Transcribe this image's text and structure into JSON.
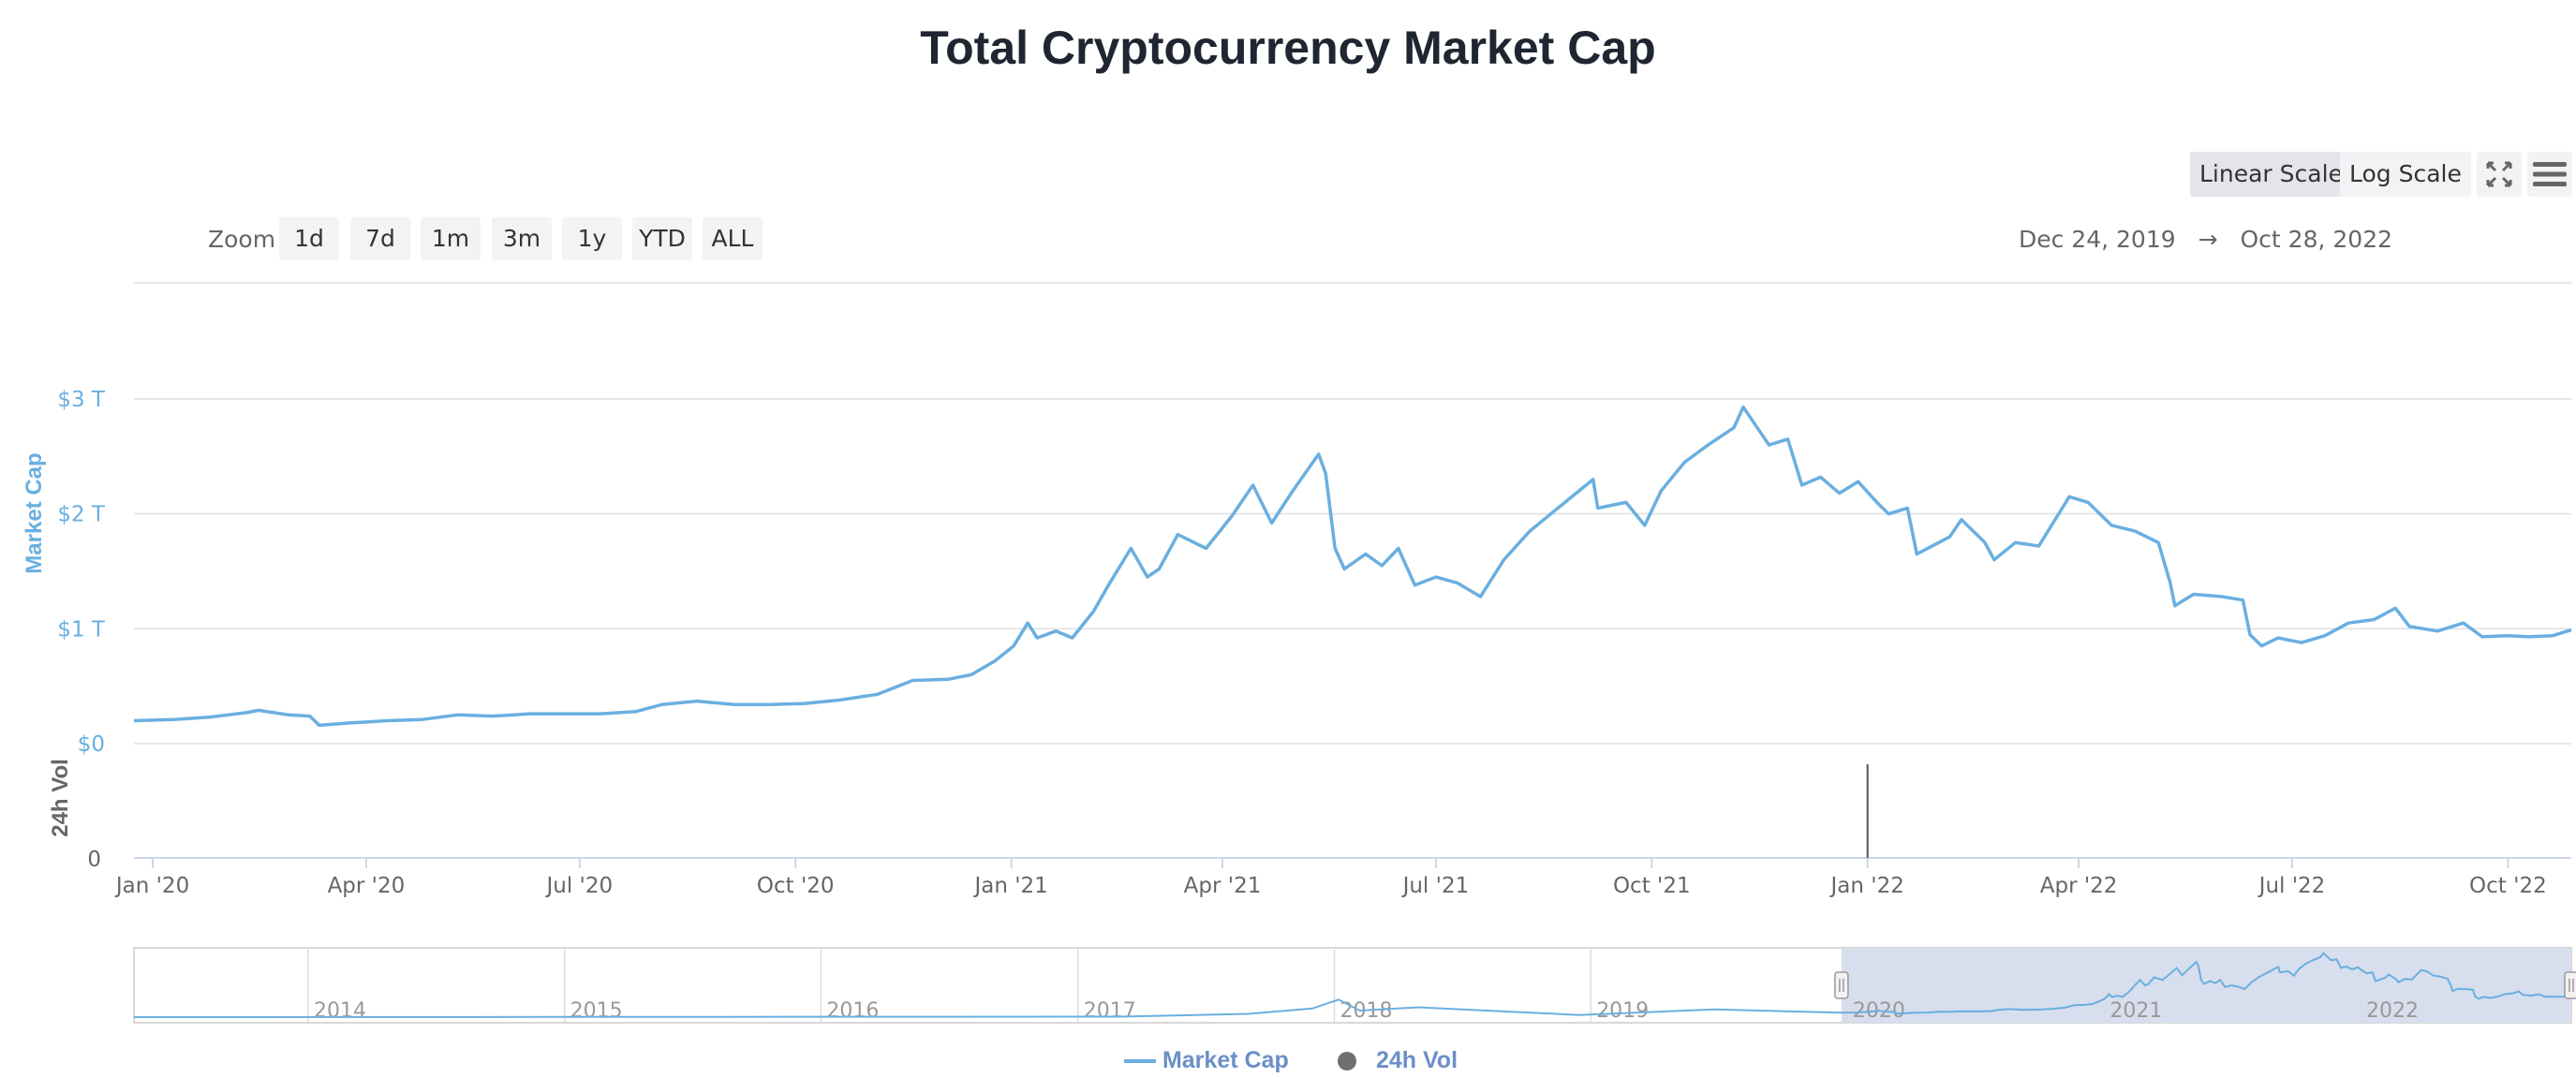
{
  "chart_data": {
    "type": "line",
    "title": "Total Cryptocurrency Market Cap",
    "date_range": {
      "from": "Dec 24, 2019",
      "arrow": "→",
      "to": "Oct 28, 2022"
    },
    "y_axis_market_cap": {
      "label": "Market Cap",
      "unit": "$ trillion",
      "range": [
        0,
        3
      ],
      "ticks": [
        "$0",
        "$1 T",
        "$2 T",
        "$3 T"
      ],
      "tick_values": [
        0,
        1,
        2,
        3
      ]
    },
    "y_axis_volume": {
      "label": "24h Vol",
      "ticks": [
        "0"
      ]
    },
    "x_tick_labels": [
      "Jan '20",
      "Apr '20",
      "Jul '20",
      "Oct '20",
      "Jan '21",
      "Apr '21",
      "Jul '21",
      "Oct '21",
      "Jan '22",
      "Apr '22",
      "Jul '22",
      "Oct '22"
    ],
    "x_tick_dates": [
      "2020-01-01",
      "2020-04-01",
      "2020-07-01",
      "2020-10-01",
      "2021-01-01",
      "2021-04-01",
      "2021-07-01",
      "2021-10-01",
      "2022-01-01",
      "2022-04-01",
      "2022-07-01",
      "2022-10-01"
    ],
    "x_range": [
      "2019-12-24",
      "2022-10-28"
    ],
    "grid": true,
    "legend_position": "bottom-center",
    "series": [
      {
        "name": "Market Cap",
        "color": "#6aafe0",
        "points": [
          [
            "2019-12-24",
            0.2
          ],
          [
            "2020-01-10",
            0.21
          ],
          [
            "2020-01-25",
            0.23
          ],
          [
            "2020-02-10",
            0.27
          ],
          [
            "2020-02-15",
            0.29
          ],
          [
            "2020-02-28",
            0.25
          ],
          [
            "2020-03-08",
            0.24
          ],
          [
            "2020-03-12",
            0.16
          ],
          [
            "2020-03-25",
            0.18
          ],
          [
            "2020-04-10",
            0.2
          ],
          [
            "2020-04-25",
            0.21
          ],
          [
            "2020-05-10",
            0.25
          ],
          [
            "2020-05-25",
            0.24
          ],
          [
            "2020-06-10",
            0.26
          ],
          [
            "2020-06-25",
            0.26
          ],
          [
            "2020-07-10",
            0.26
          ],
          [
            "2020-07-25",
            0.28
          ],
          [
            "2020-08-05",
            0.34
          ],
          [
            "2020-08-20",
            0.37
          ],
          [
            "2020-09-05",
            0.34
          ],
          [
            "2020-09-20",
            0.34
          ],
          [
            "2020-10-05",
            0.35
          ],
          [
            "2020-10-20",
            0.38
          ],
          [
            "2020-11-05",
            0.43
          ],
          [
            "2020-11-20",
            0.55
          ],
          [
            "2020-12-05",
            0.56
          ],
          [
            "2020-12-15",
            0.6
          ],
          [
            "2020-12-25",
            0.72
          ],
          [
            "2021-01-02",
            0.85
          ],
          [
            "2021-01-08",
            1.05
          ],
          [
            "2021-01-12",
            0.92
          ],
          [
            "2021-01-20",
            0.98
          ],
          [
            "2021-01-27",
            0.92
          ],
          [
            "2021-02-05",
            1.15
          ],
          [
            "2021-02-12",
            1.4
          ],
          [
            "2021-02-21",
            1.7
          ],
          [
            "2021-02-28",
            1.45
          ],
          [
            "2021-03-05",
            1.52
          ],
          [
            "2021-03-13",
            1.82
          ],
          [
            "2021-03-25",
            1.7
          ],
          [
            "2021-04-05",
            1.98
          ],
          [
            "2021-04-14",
            2.25
          ],
          [
            "2021-04-22",
            1.92
          ],
          [
            "2021-05-01",
            2.2
          ],
          [
            "2021-05-12",
            2.52
          ],
          [
            "2021-05-15",
            2.35
          ],
          [
            "2021-05-19",
            1.7
          ],
          [
            "2021-05-23",
            1.52
          ],
          [
            "2021-06-01",
            1.65
          ],
          [
            "2021-06-08",
            1.55
          ],
          [
            "2021-06-15",
            1.7
          ],
          [
            "2021-06-22",
            1.38
          ],
          [
            "2021-07-01",
            1.45
          ],
          [
            "2021-07-10",
            1.4
          ],
          [
            "2021-07-20",
            1.28
          ],
          [
            "2021-07-30",
            1.6
          ],
          [
            "2021-08-10",
            1.85
          ],
          [
            "2021-08-22",
            2.05
          ],
          [
            "2021-09-06",
            2.3
          ],
          [
            "2021-09-08",
            2.05
          ],
          [
            "2021-09-20",
            2.1
          ],
          [
            "2021-09-28",
            1.9
          ],
          [
            "2021-10-05",
            2.2
          ],
          [
            "2021-10-15",
            2.45
          ],
          [
            "2021-10-25",
            2.6
          ],
          [
            "2021-11-05",
            2.75
          ],
          [
            "2021-11-09",
            2.93
          ],
          [
            "2021-11-15",
            2.75
          ],
          [
            "2021-11-20",
            2.6
          ],
          [
            "2021-11-28",
            2.65
          ],
          [
            "2021-12-04",
            2.25
          ],
          [
            "2021-12-12",
            2.32
          ],
          [
            "2021-12-20",
            2.18
          ],
          [
            "2021-12-28",
            2.28
          ],
          [
            "2022-01-05",
            2.1
          ],
          [
            "2022-01-10",
            2.0
          ],
          [
            "2022-01-18",
            2.05
          ],
          [
            "2022-01-22",
            1.65
          ],
          [
            "2022-02-05",
            1.8
          ],
          [
            "2022-02-10",
            1.95
          ],
          [
            "2022-02-20",
            1.75
          ],
          [
            "2022-02-24",
            1.6
          ],
          [
            "2022-03-05",
            1.75
          ],
          [
            "2022-03-15",
            1.72
          ],
          [
            "2022-03-28",
            2.15
          ],
          [
            "2022-04-05",
            2.1
          ],
          [
            "2022-04-15",
            1.9
          ],
          [
            "2022-04-25",
            1.85
          ],
          [
            "2022-05-05",
            1.75
          ],
          [
            "2022-05-10",
            1.4
          ],
          [
            "2022-05-12",
            1.2
          ],
          [
            "2022-05-20",
            1.3
          ],
          [
            "2022-06-01",
            1.28
          ],
          [
            "2022-06-10",
            1.25
          ],
          [
            "2022-06-13",
            0.95
          ],
          [
            "2022-06-18",
            0.85
          ],
          [
            "2022-06-25",
            0.92
          ],
          [
            "2022-07-05",
            0.88
          ],
          [
            "2022-07-15",
            0.94
          ],
          [
            "2022-07-25",
            1.05
          ],
          [
            "2022-08-05",
            1.08
          ],
          [
            "2022-08-14",
            1.18
          ],
          [
            "2022-08-20",
            1.02
          ],
          [
            "2022-09-01",
            0.98
          ],
          [
            "2022-09-12",
            1.05
          ],
          [
            "2022-09-20",
            0.93
          ],
          [
            "2022-10-01",
            0.94
          ],
          [
            "2022-10-10",
            0.93
          ],
          [
            "2022-10-20",
            0.94
          ],
          [
            "2022-10-28",
            0.99
          ]
        ]
      },
      {
        "name": "24h Vol",
        "color": "#555555",
        "points": [
          [
            "2022-01-01",
            1
          ]
        ]
      }
    ],
    "navigator": {
      "year_labels": [
        "2014",
        "2015",
        "2016",
        "2017",
        "2018",
        "2019",
        "2020",
        "2021",
        "2022"
      ],
      "year_dates": [
        "2014-01-01",
        "2015-01-01",
        "2016-01-01",
        "2017-01-01",
        "2018-01-01",
        "2019-01-01",
        "2020-01-01",
        "2021-01-01",
        "2022-01-01"
      ],
      "range": [
        "2013-04-28",
        "2022-10-28"
      ],
      "selected": [
        "2019-12-24",
        "2022-10-28"
      ],
      "history_points": [
        [
          "2013-04-28",
          0.002
        ],
        [
          "2017-03-01",
          0.02
        ],
        [
          "2017-09-01",
          0.15
        ],
        [
          "2017-12-01",
          0.4
        ],
        [
          "2018-01-07",
          0.8
        ],
        [
          "2018-02-06",
          0.3
        ],
        [
          "2018-05-01",
          0.45
        ],
        [
          "2018-12-15",
          0.1
        ],
        [
          "2019-06-26",
          0.35
        ],
        [
          "2019-12-24",
          0.2
        ]
      ]
    }
  },
  "toolbar": {
    "linear_scale": "Linear Scale",
    "log_scale": "Log Scale",
    "active_scale": "linear",
    "fullscreen_icon": "fullscreen-icon",
    "menu_icon": "hamburger-menu-icon"
  },
  "zoom": {
    "label": "Zoom",
    "buttons": [
      "1d",
      "7d",
      "1m",
      "3m",
      "1y",
      "YTD",
      "ALL"
    ]
  },
  "legend": [
    {
      "label": "Market Cap",
      "symbol": "line",
      "color": "#6aafe0"
    },
    {
      "label": "24h Vol",
      "symbol": "circle",
      "color": "#707070"
    }
  ],
  "colors": {
    "axis_label": "#6aafe0",
    "navigator_selection": "#d5dcec",
    "title": "#1f2531"
  }
}
